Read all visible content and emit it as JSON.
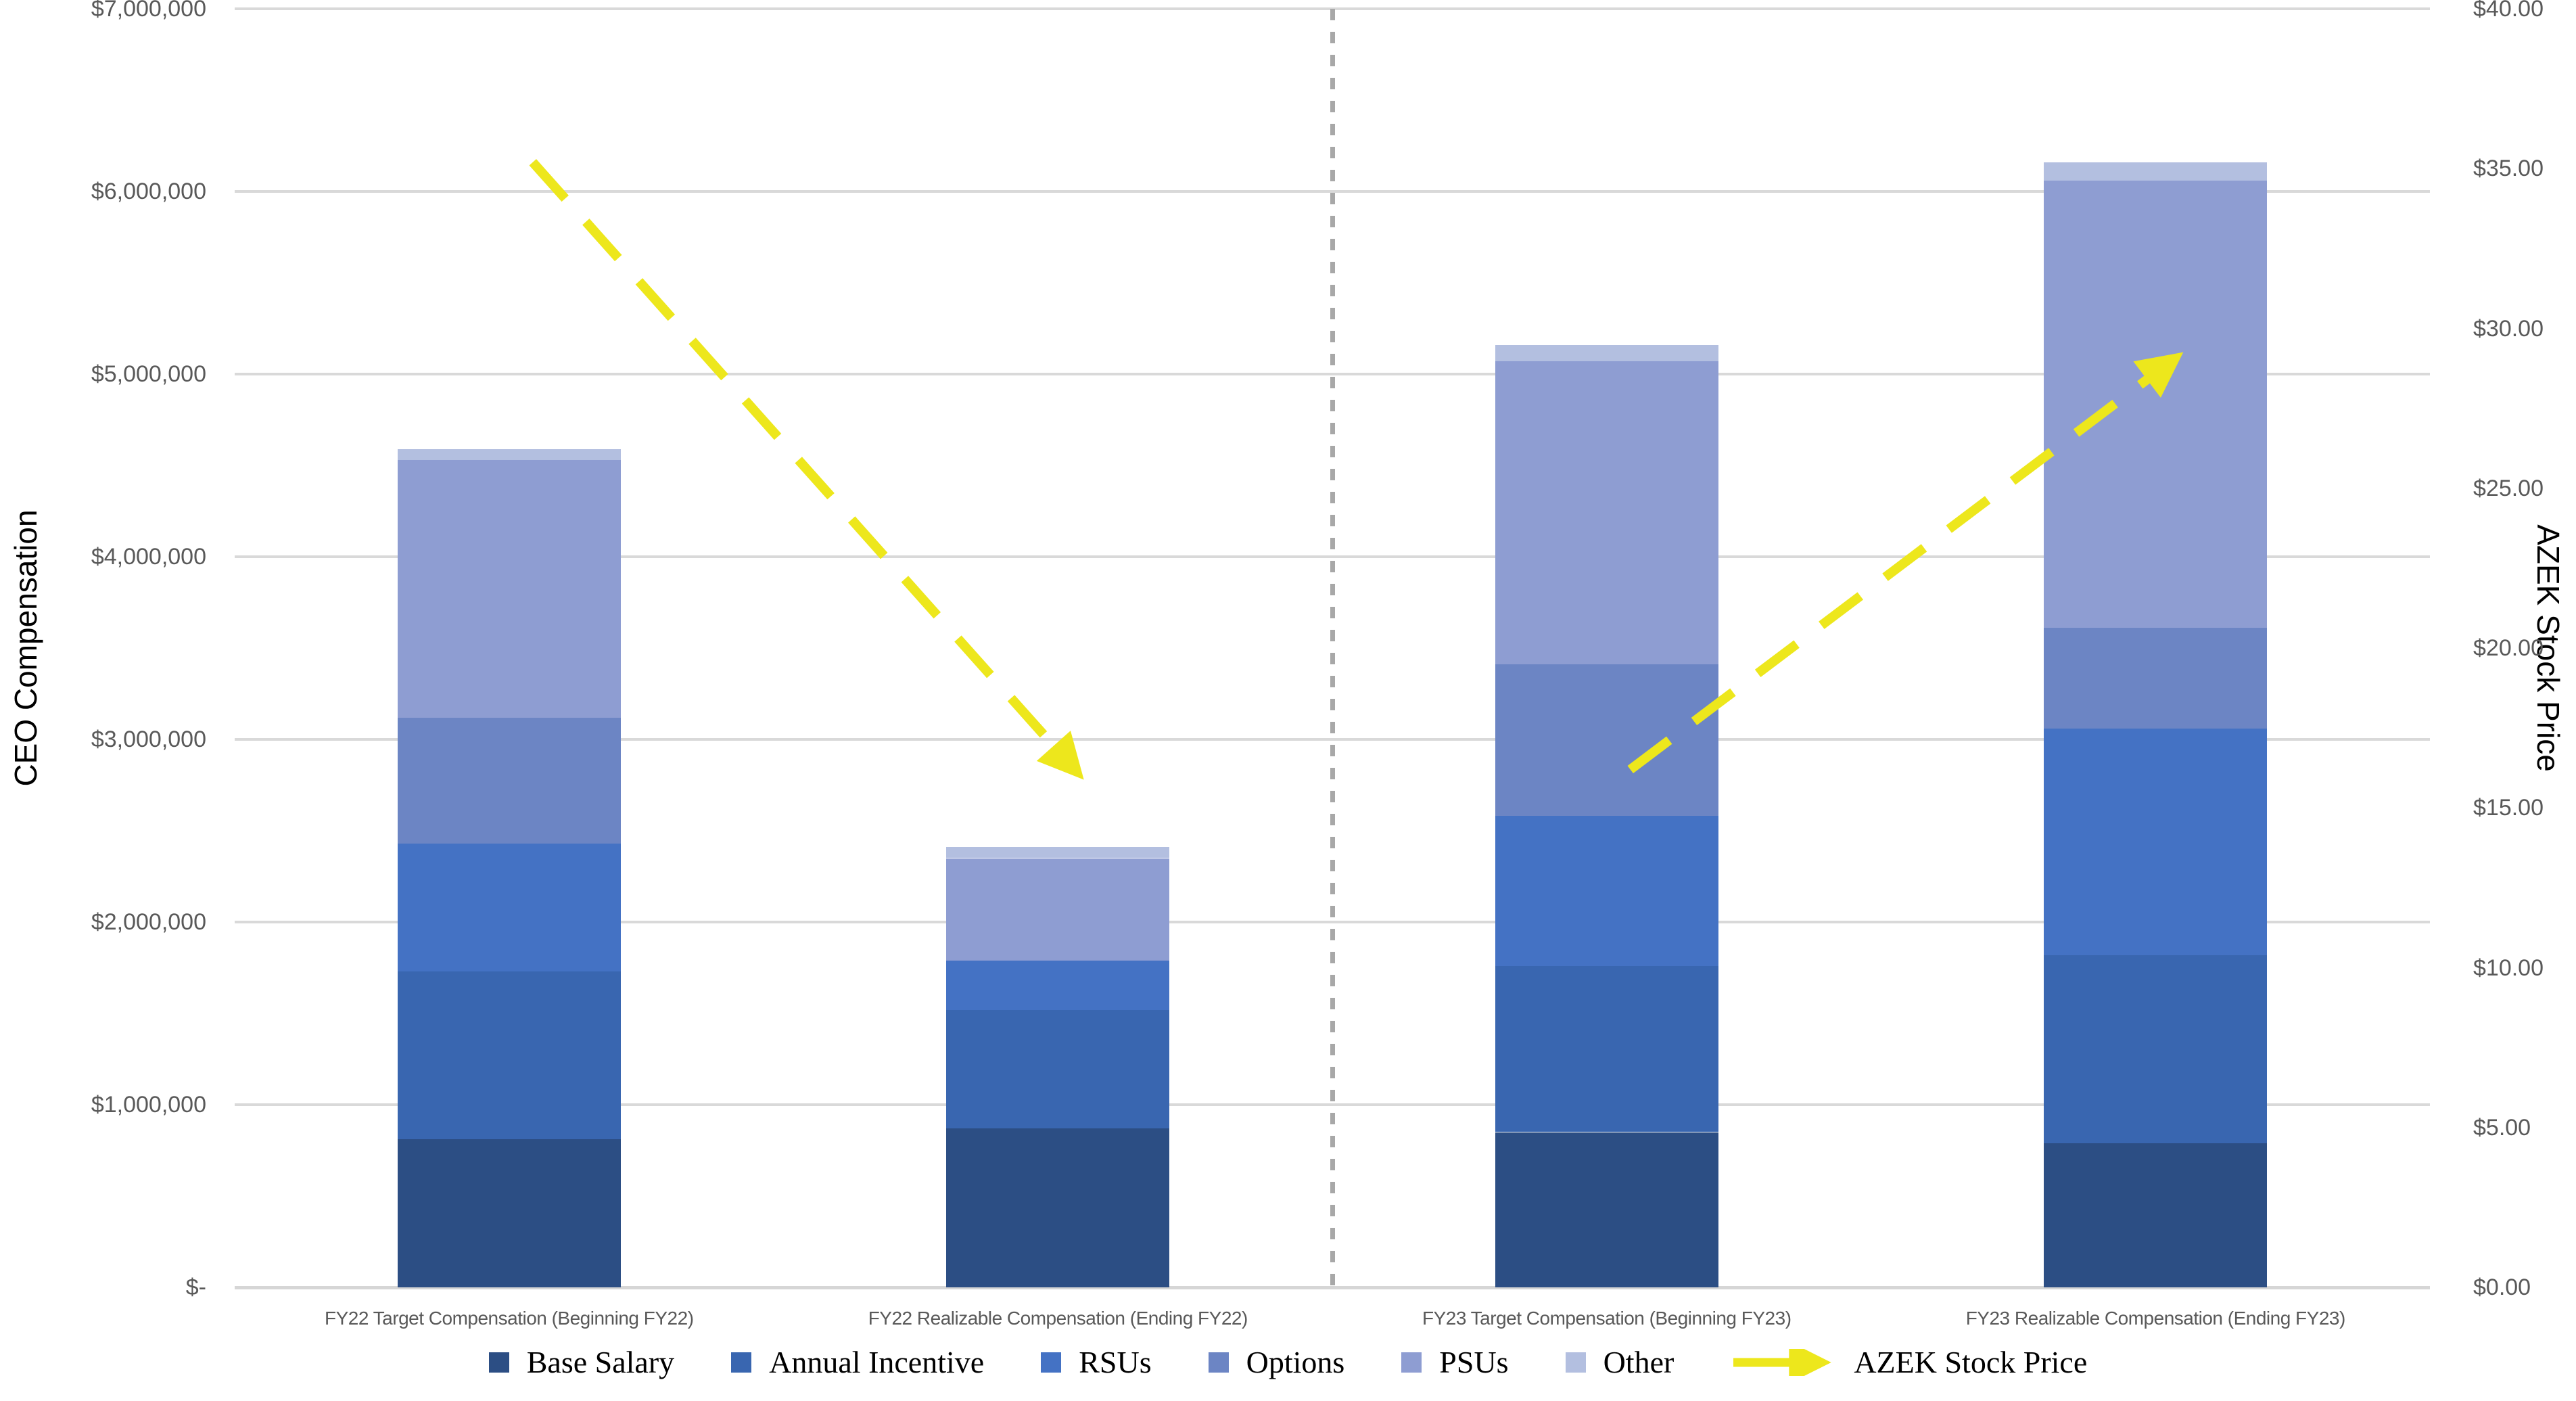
{
  "chart_data": {
    "type": "bar",
    "subtype": "stacked-column-with-line-overlay",
    "title": "",
    "categories": [
      "FY22 Target Compensation (Beginning FY22)",
      "FY22 Realizable Compensation (Ending FY22)",
      "FY23 Target Compensation (Beginning FY23)",
      "FY23 Realizable Compensation (Ending FY23)"
    ],
    "series": [
      {
        "name": "Base Salary",
        "color": "#2C4E84",
        "values": [
          810000,
          870000,
          850000,
          790000
        ]
      },
      {
        "name": "Annual Incentive",
        "color": "#3966B0",
        "values": [
          920000,
          650000,
          910000,
          1030000
        ]
      },
      {
        "name": "RSUs",
        "color": "#4472C4",
        "values": [
          700000,
          270000,
          820000,
          1240000
        ]
      },
      {
        "name": "Options",
        "color": "#6C85C4",
        "values": [
          690000,
          0,
          830000,
          550000
        ]
      },
      {
        "name": "PSUs",
        "color": "#8E9DD2",
        "values": [
          1410000,
          560000,
          1660000,
          2450000
        ]
      },
      {
        "name": "Other",
        "color": "#B3BFE0",
        "values": [
          60000,
          60000,
          90000,
          100000
        ]
      }
    ],
    "bar_totals": [
      4590000,
      2410000,
      5160000,
      6160000
    ],
    "line_series": {
      "name": "AZEK Stock Price",
      "axis": "right",
      "color": "#EDE71C",
      "style": "dashed-arrow",
      "segments": [
        {
          "from_category": 0,
          "from_value": 35.2,
          "to_category": 1,
          "to_value": 16.2
        },
        {
          "from_category": 2,
          "from_value": 16.2,
          "to_category": 3,
          "to_value": 29.0
        }
      ]
    },
    "left_axis": {
      "title": "CEO Compensation",
      "min": 0,
      "max": 7000000,
      "tick_step": 1000000,
      "ticks": [
        {
          "label": "$-",
          "value": 0
        },
        {
          "label": "$1,000,000",
          "value": 1000000
        },
        {
          "label": "$2,000,000",
          "value": 2000000
        },
        {
          "label": "$3,000,000",
          "value": 3000000
        },
        {
          "label": "$4,000,000",
          "value": 4000000
        },
        {
          "label": "$5,000,000",
          "value": 5000000
        },
        {
          "label": "$6,000,000",
          "value": 6000000
        },
        {
          "label": "$7,000,000",
          "value": 7000000
        }
      ]
    },
    "right_axis": {
      "title": "AZEK Stock Price",
      "min": 0,
      "max": 40,
      "tick_step": 5,
      "ticks": [
        {
          "label": "$0.00",
          "value": 0
        },
        {
          "label": "$5.00",
          "value": 5
        },
        {
          "label": "$10.00",
          "value": 10
        },
        {
          "label": "$15.00",
          "value": 15
        },
        {
          "label": "$20.00",
          "value": 20
        },
        {
          "label": "$25.00",
          "value": 25
        },
        {
          "label": "$30.00",
          "value": 30
        },
        {
          "label": "$35.00",
          "value": 35
        },
        {
          "label": "$40.00",
          "value": 40
        }
      ]
    },
    "divider": {
      "between_categories": [
        1,
        2
      ],
      "style": "dashed",
      "color": "#A8A8A8"
    },
    "legend": {
      "position": "bottom",
      "items": [
        {
          "label": "Base Salary",
          "type": "swatch",
          "color": "#2C4E84"
        },
        {
          "label": "Annual Incentive",
          "type": "swatch",
          "color": "#3966B0"
        },
        {
          "label": "RSUs",
          "type": "swatch",
          "color": "#4472C4"
        },
        {
          "label": "Options",
          "type": "swatch",
          "color": "#6C85C4"
        },
        {
          "label": "PSUs",
          "type": "swatch",
          "color": "#8E9DD2"
        },
        {
          "label": "Other",
          "type": "swatch",
          "color": "#B3BFE0"
        },
        {
          "label": "AZEK Stock Price",
          "type": "arrow",
          "color": "#EDE71C"
        }
      ]
    },
    "grid": {
      "horizontal": true,
      "vertical": false,
      "color": "#D9D9D9"
    }
  },
  "colors": {
    "background": "#FFFFFF",
    "tick_text": "#595959",
    "axis_title_text": "#000000",
    "gridline": "#D9D9D9",
    "divider": "#A8A8A8",
    "stock_arrow": "#EDE71C"
  }
}
